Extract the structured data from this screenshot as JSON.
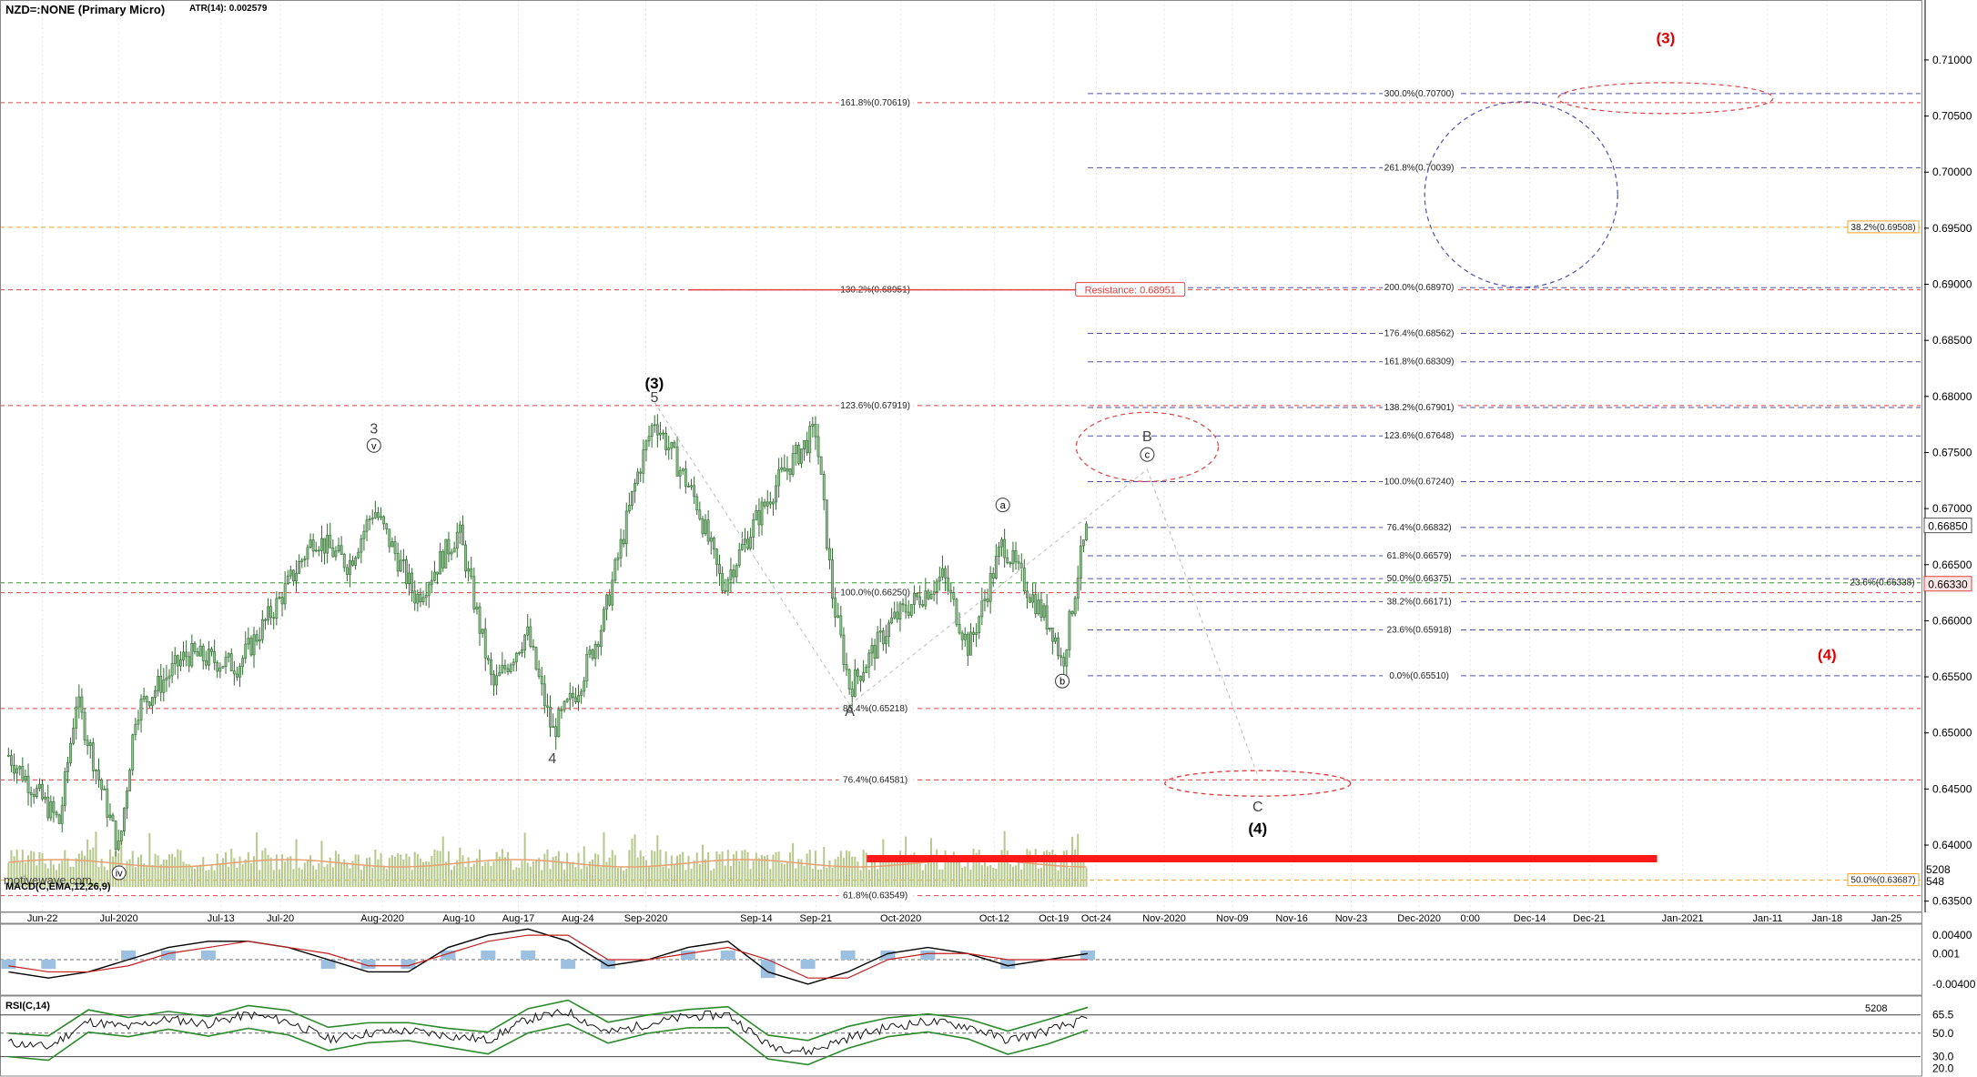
{
  "header": {
    "symbol": "NZD=:NONE (Primary Micro)",
    "atr": "ATR(14): 0.002579",
    "watermark": "motivewave.com"
  },
  "colors": {
    "bar": "#2f6b2f",
    "bar_fill": "#8fbf8f",
    "red": "#e04040",
    "blue": "#5050b0",
    "orange": "#f0a020",
    "green": "#2a9a2a",
    "volume": "#b5c98a",
    "volume_ma": "#e8a070"
  },
  "chart_data": [
    {
      "type": "candlestick",
      "title": "NZD=:NONE (Primary Micro)",
      "ylim": [
        0.634,
        0.7125
      ],
      "yticks": [
        "0.71000",
        "0.70500",
        "0.70000",
        "0.69500",
        "0.69000",
        "0.68500",
        "0.68000",
        "0.67500",
        "0.67000",
        "0.66500",
        "0.66000",
        "0.65500",
        "0.65000",
        "0.64500",
        "0.64000",
        "0.63500"
      ],
      "xlabels": [
        "Jun-22",
        "Jul-2020",
        "Jul-13",
        "Jul-20",
        "Aug-2020",
        "Aug-10",
        "Aug-17",
        "Aug-24",
        "Sep-2020",
        "Sep-14",
        "Sep-21",
        "Oct-2020",
        "Oct-12",
        "Oct-19",
        "Oct-24",
        "Nov-2020",
        "Nov-09",
        "Nov-16",
        "Nov-23",
        "Dec-2020",
        "0:00",
        "Dec-14",
        "Dec-21",
        "Jan-2021",
        "Jan-11",
        "Jan-18",
        "Jan-25"
      ],
      "price_path": [
        {
          "date": "2020-06-18",
          "price": 0.648
        },
        {
          "date": "2020-06-24",
          "price": 0.642
        },
        {
          "date": "2020-06-26",
          "price": 0.653
        },
        {
          "date": "2020-07-01",
          "price": 0.6395
        },
        {
          "date": "2020-07-03",
          "price": 0.652
        },
        {
          "date": "2020-07-09",
          "price": 0.657
        },
        {
          "date": "2020-07-15",
          "price": 0.656
        },
        {
          "date": "2020-07-20",
          "price": 0.662
        },
        {
          "date": "2020-07-24",
          "price": 0.6675
        },
        {
          "date": "2020-07-28",
          "price": 0.665
        },
        {
          "date": "2020-07-31",
          "price": 0.67
        },
        {
          "date": "2020-08-05",
          "price": 0.662
        },
        {
          "date": "2020-08-10",
          "price": 0.668
        },
        {
          "date": "2020-08-14",
          "price": 0.654
        },
        {
          "date": "2020-08-18",
          "price": 0.659
        },
        {
          "date": "2020-08-21",
          "price": 0.65
        },
        {
          "date": "2020-08-24",
          "price": 0.654
        },
        {
          "date": "2020-08-27",
          "price": 0.66
        },
        {
          "date": "2020-08-31",
          "price": 0.673
        },
        {
          "date": "2020-09-02",
          "price": 0.678
        },
        {
          "date": "2020-09-07",
          "price": 0.6705
        },
        {
          "date": "2020-09-10",
          "price": 0.663
        },
        {
          "date": "2020-09-14",
          "price": 0.669
        },
        {
          "date": "2020-09-17",
          "price": 0.673
        },
        {
          "date": "2020-09-21",
          "price": 0.677
        },
        {
          "date": "2020-09-23",
          "price": 0.662
        },
        {
          "date": "2020-09-25",
          "price": 0.654
        },
        {
          "date": "2020-09-30",
          "price": 0.66
        },
        {
          "date": "2020-10-06",
          "price": 0.664
        },
        {
          "date": "2020-10-09",
          "price": 0.6575
        },
        {
          "date": "2020-10-13",
          "price": 0.667
        },
        {
          "date": "2020-10-15",
          "price": 0.664
        },
        {
          "date": "2020-10-19",
          "price": 0.659
        },
        {
          "date": "2020-10-20",
          "price": 0.656
        },
        {
          "date": "2020-10-22",
          "price": 0.665
        },
        {
          "date": "2020-10-23",
          "price": 0.6685
        }
      ],
      "series": [
        {
          "name": "fib_left",
          "levels": [
            {
              "label": "161.8%(0.70619)",
              "value": 0.70619
            },
            {
              "label": "130.2%(0.68951)",
              "value": 0.68951
            },
            {
              "label": "123.6%(0.67919)",
              "value": 0.67919
            },
            {
              "label": "100.0%(0.66250)",
              "value": 0.6625
            },
            {
              "label": "85.4%(0.65218)",
              "value": 0.65218
            },
            {
              "label": "76.4%(0.64581)",
              "value": 0.64581
            },
            {
              "label": "61.8%(0.63549)",
              "value": 0.63549
            }
          ]
        },
        {
          "name": "fib_right",
          "levels": [
            {
              "label": "300.0%(0.70700)",
              "value": 0.707
            },
            {
              "label": "261.8%(0.70039)",
              "value": 0.70039
            },
            {
              "label": "200.0%(0.68970)",
              "value": 0.6897
            },
            {
              "label": "176.4%(0.68562)",
              "value": 0.68562
            },
            {
              "label": "161.8%(0.68309)",
              "value": 0.68309
            },
            {
              "label": "138.2%(0.67901)",
              "value": 0.67901
            },
            {
              "label": "123.6%(0.67648)",
              "value": 0.67648
            },
            {
              "label": "100.0%(0.67240)",
              "value": 0.6724
            },
            {
              "label": "76.4%(0.66832)",
              "value": 0.66832
            },
            {
              "label": "61.8%(0.66579)",
              "value": 0.66579
            },
            {
              "label": "50.0%(0.66375)",
              "value": 0.66375
            },
            {
              "label": "38.2%(0.66171)",
              "value": 0.66171
            },
            {
              "label": "23.6%(0.65918)",
              "value": 0.65918
            },
            {
              "label": "0.0%(0.65510)",
              "value": 0.6551
            }
          ]
        },
        {
          "name": "fib_orange",
          "levels": [
            {
              "label": "38.2%(0.69508)",
              "value": 0.69508
            },
            {
              "label": "50.0%(0.63687)",
              "value": 0.63687
            }
          ]
        },
        {
          "name": "fib_green",
          "levels": [
            {
              "label": "23.6%(0.66338)",
              "value": 0.66338
            }
          ]
        }
      ],
      "resistance": {
        "label": "Resistance: 0.68951",
        "value": 0.68951
      },
      "last_price": "0.66850",
      "current_price": "0.66330",
      "wave_labels": [
        {
          "text": "(3)",
          "date": "2020-12-30",
          "price": 0.7115,
          "color": "red"
        },
        {
          "text": "(4)",
          "date": "2021-01-18",
          "price": 0.6565,
          "color": "red"
        },
        {
          "text": "(3)",
          "date": "2020-09-02",
          "price": 0.6807,
          "color": "black"
        },
        {
          "text": "5",
          "date": "2020-09-02",
          "price": 0.6795,
          "color": "gray"
        },
        {
          "text": "3",
          "date": "2020-07-31",
          "price": 0.6767,
          "color": "gray"
        },
        {
          "text": "v",
          "date": "2020-07-31",
          "price": 0.6753,
          "color": "circle"
        },
        {
          "text": "4",
          "date": "2020-08-21",
          "price": 0.6473,
          "color": "gray"
        },
        {
          "text": "iv",
          "date": "2020-07-01",
          "price": 0.6372,
          "color": "circle"
        },
        {
          "text": "A",
          "date": "2020-09-25",
          "price": 0.6515,
          "color": "gray"
        },
        {
          "text": "B",
          "date": "2020-10-30",
          "price": 0.676,
          "color": "gray"
        },
        {
          "text": "c",
          "date": "2020-10-30",
          "price": 0.6745,
          "color": "circle"
        },
        {
          "text": "a",
          "date": "2020-10-13",
          "price": 0.67,
          "color": "circle"
        },
        {
          "text": "b",
          "date": "2020-10-20",
          "price": 0.6543,
          "color": "circle"
        },
        {
          "text": "C",
          "date": "2020-11-12",
          "price": 0.643,
          "color": "gray"
        },
        {
          "text": "(4)",
          "date": "2020-11-12",
          "price": 0.641,
          "color": "black"
        }
      ],
      "volume_axis": [
        "5208",
        "548"
      ]
    },
    {
      "type": "line",
      "title": "MACD(C,EMA,12,26,9)",
      "ylim": [
        -0.0055,
        0.0055
      ],
      "yticks": [
        "0.00400",
        "0.001",
        "-0.00400"
      ],
      "series": [
        {
          "name": "MACD",
          "values": [
            -0.002,
            -0.003,
            -0.002,
            0.0,
            0.002,
            0.003,
            0.003,
            0.002,
            0.0,
            -0.002,
            -0.002,
            0.002,
            0.004,
            0.005,
            0.003,
            -0.001,
            0.0,
            0.002,
            0.003,
            -0.002,
            -0.004,
            -0.002,
            0.001,
            0.002,
            0.001,
            -0.001,
            0.0,
            0.001
          ]
        },
        {
          "name": "Signal",
          "values": [
            -0.001,
            -0.002,
            -0.002,
            -0.001,
            0.001,
            0.002,
            0.003,
            0.002,
            0.001,
            -0.001,
            -0.001,
            0.001,
            0.003,
            0.004,
            0.004,
            0.0,
            0.0,
            0.001,
            0.002,
            0.0,
            -0.003,
            -0.003,
            0.0,
            0.001,
            0.001,
            0.0,
            0.0,
            0.0
          ]
        }
      ]
    },
    {
      "type": "line",
      "title": "RSI(C,14)",
      "ylim": [
        15,
        80
      ],
      "yticks": [
        "65.5",
        "50.0",
        "30.0",
        "20.0"
      ],
      "series": [
        {
          "name": "RSI",
          "values": [
            42,
            38,
            60,
            55,
            62,
            58,
            66,
            60,
            45,
            50,
            52,
            48,
            44,
            62,
            68,
            50,
            58,
            64,
            66,
            40,
            34,
            46,
            55,
            60,
            56,
            44,
            52,
            62
          ]
        }
      ]
    }
  ]
}
